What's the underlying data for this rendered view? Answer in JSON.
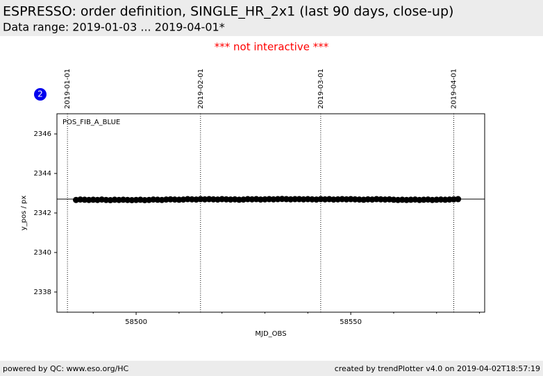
{
  "header": {
    "title": "ESPRESSO: order definition, SINGLE_HR_2x1 (last 90 days, close-up)",
    "subtitle": "Data range: 2019-01-03 ... 2019-04-01*"
  },
  "notice": "*** not interactive ***",
  "badge": "2",
  "chart_data": {
    "type": "scatter",
    "xlabel": "MJD_OBS",
    "ylabel": "y_pos / px",
    "xlim": [
      58481.55,
      58581.2
    ],
    "ylim": [
      2336.98,
      2347.02
    ],
    "xticks": [
      58500,
      58550
    ],
    "xminorticks": [
      58490,
      58510,
      58520,
      58530,
      58540,
      58560,
      58570,
      58580
    ],
    "yticks": [
      2338,
      2340,
      2342,
      2344,
      2346
    ],
    "hline": 2342.7,
    "vlines": [
      {
        "x": 58484,
        "label": "2019-01-01"
      },
      {
        "x": 58515,
        "label": "2019-02-01"
      },
      {
        "x": 58543,
        "label": "2019-03-01"
      },
      {
        "x": 58574,
        "label": "2019-04-01"
      }
    ],
    "x": [
      58486,
      58487,
      58488,
      58489,
      58490,
      58491,
      58492,
      58493,
      58494,
      58495,
      58496,
      58497,
      58498,
      58499,
      58500,
      58501,
      58502,
      58503,
      58504,
      58505,
      58506,
      58507,
      58508,
      58509,
      58510,
      58511,
      58512,
      58513,
      58514,
      58515,
      58516,
      58517,
      58518,
      58519,
      58520,
      58521,
      58522,
      58523,
      58524,
      58525,
      58526,
      58527,
      58528,
      58529,
      58530,
      58531,
      58532,
      58533,
      58534,
      58535,
      58536,
      58537,
      58538,
      58539,
      58540,
      58541,
      58542,
      58543,
      58544,
      58545,
      58546,
      58547,
      58548,
      58549,
      58550,
      58551,
      58552,
      58553,
      58554,
      58555,
      58556,
      58557,
      58558,
      58559,
      58560,
      58561,
      58562,
      58563,
      58564,
      58565,
      58566,
      58567,
      58568,
      58569,
      58570,
      58571,
      58572,
      58573,
      58574,
      58575
    ],
    "series": [
      {
        "name": "POS_FIB_A_BLUE",
        "color": "#000000",
        "values": [
          2342.66,
          2342.68,
          2342.67,
          2342.66,
          2342.67,
          2342.66,
          2342.68,
          2342.66,
          2342.65,
          2342.67,
          2342.66,
          2342.67,
          2342.66,
          2342.65,
          2342.66,
          2342.67,
          2342.65,
          2342.66,
          2342.68,
          2342.67,
          2342.66,
          2342.68,
          2342.69,
          2342.68,
          2342.67,
          2342.68,
          2342.7,
          2342.69,
          2342.68,
          2342.7,
          2342.69,
          2342.7,
          2342.69,
          2342.68,
          2342.7,
          2342.69,
          2342.68,
          2342.69,
          2342.67,
          2342.68,
          2342.7,
          2342.69,
          2342.7,
          2342.68,
          2342.69,
          2342.7,
          2342.69,
          2342.7,
          2342.71,
          2342.7,
          2342.69,
          2342.7,
          2342.7,
          2342.69,
          2342.7,
          2342.69,
          2342.68,
          2342.7,
          2342.69,
          2342.7,
          2342.68,
          2342.69,
          2342.7,
          2342.69,
          2342.7,
          2342.69,
          2342.68,
          2342.67,
          2342.69,
          2342.68,
          2342.7,
          2342.69,
          2342.68,
          2342.69,
          2342.67,
          2342.66,
          2342.67,
          2342.66,
          2342.67,
          2342.68,
          2342.66,
          2342.67,
          2342.68,
          2342.66,
          2342.67,
          2342.68,
          2342.67,
          2342.68,
          2342.69,
          2342.7
        ]
      }
    ]
  },
  "footer": {
    "left": "powered by QC: www.eso.org/HC",
    "right": "created by trendPlotter v4.0 on 2019-04-02T18:57:19"
  }
}
